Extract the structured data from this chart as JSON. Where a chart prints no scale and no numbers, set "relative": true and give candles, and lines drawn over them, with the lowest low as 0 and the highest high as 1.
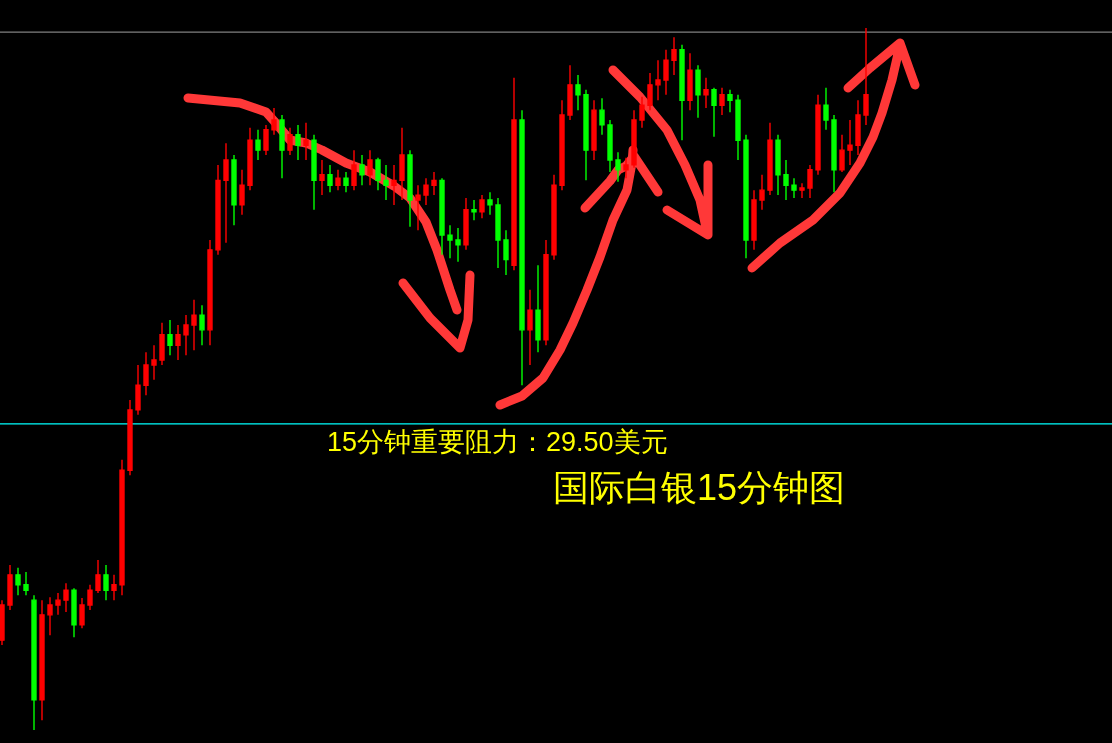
{
  "chart_data": {
    "type": "candlestick",
    "title": "国际白银15分钟图",
    "relative": true,
    "categories": [
      null,
      null,
      null,
      null,
      null,
      null,
      null,
      null,
      null,
      null,
      null,
      null,
      null,
      null,
      null,
      null,
      null,
      null,
      null,
      null,
      null,
      null,
      null,
      null,
      null,
      null,
      null,
      null,
      null,
      null,
      null,
      null,
      null,
      null,
      null,
      null,
      null,
      null,
      null,
      null,
      null,
      null,
      null,
      null,
      null,
      null,
      null,
      null,
      null,
      null,
      null,
      null,
      null,
      null,
      null,
      null,
      null,
      null,
      null,
      null,
      null,
      null,
      null,
      null,
      null,
      null,
      null,
      null,
      null,
      null,
      null,
      null,
      null,
      null,
      null,
      null,
      null,
      null,
      null,
      null,
      null,
      null,
      null,
      null,
      null,
      null,
      null,
      null,
      null,
      null,
      null,
      null,
      null,
      null,
      null,
      null,
      null,
      null,
      null,
      null,
      null,
      null,
      null,
      null,
      null,
      null,
      null,
      null,
      null
    ],
    "ohlc": [
      [
        0.128,
        0.185,
        0.121,
        0.178
      ],
      [
        0.178,
        0.235,
        0.171,
        0.221
      ],
      [
        0.221,
        0.231,
        0.192,
        0.207
      ],
      [
        0.207,
        0.225,
        0.192,
        0.199
      ],
      [
        0.185,
        0.192,
        0.0,
        0.043
      ],
      [
        0.043,
        0.185,
        0.014,
        0.164
      ],
      [
        0.164,
        0.189,
        0.135,
        0.178
      ],
      [
        0.178,
        0.195,
        0.164,
        0.185
      ],
      [
        0.185,
        0.209,
        0.168,
        0.199
      ],
      [
        0.199,
        0.202,
        0.132,
        0.15
      ],
      [
        0.15,
        0.188,
        0.145,
        0.178
      ],
      [
        0.178,
        0.207,
        0.171,
        0.199
      ],
      [
        0.199,
        0.242,
        0.195,
        0.221
      ],
      [
        0.221,
        0.235,
        0.185,
        0.199
      ],
      [
        0.199,
        0.221,
        0.185,
        0.207
      ],
      [
        0.207,
        0.385,
        0.192,
        0.37
      ],
      [
        0.37,
        0.47,
        0.363,
        0.456
      ],
      [
        0.456,
        0.52,
        0.449,
        0.491
      ],
      [
        0.491,
        0.538,
        0.477,
        0.52
      ],
      [
        0.52,
        0.548,
        0.499,
        0.527
      ],
      [
        0.527,
        0.58,
        0.52,
        0.563
      ],
      [
        0.563,
        0.584,
        0.534,
        0.548
      ],
      [
        0.548,
        0.577,
        0.527,
        0.563
      ],
      [
        0.563,
        0.591,
        0.534,
        0.577
      ],
      [
        0.577,
        0.613,
        0.541,
        0.591
      ],
      [
        0.591,
        0.605,
        0.548,
        0.57
      ],
      [
        0.57,
        0.698,
        0.548,
        0.684
      ],
      [
        0.684,
        0.805,
        0.677,
        0.783
      ],
      [
        0.783,
        0.836,
        0.694,
        0.812
      ],
      [
        0.812,
        0.819,
        0.719,
        0.748
      ],
      [
        0.748,
        0.798,
        0.734,
        0.776
      ],
      [
        0.776,
        0.858,
        0.769,
        0.84
      ],
      [
        0.84,
        0.855,
        0.812,
        0.826
      ],
      [
        0.826,
        0.862,
        0.819,
        0.855
      ],
      [
        0.855,
        0.886,
        0.848,
        0.869
      ],
      [
        0.869,
        0.876,
        0.786,
        0.826
      ],
      [
        0.826,
        0.858,
        0.819,
        0.848
      ],
      [
        0.848,
        0.862,
        0.812,
        0.833
      ],
      [
        0.833,
        0.865,
        0.812,
        0.84
      ],
      [
        0.84,
        0.848,
        0.741,
        0.783
      ],
      [
        0.783,
        0.812,
        0.762,
        0.791
      ],
      [
        0.791,
        0.805,
        0.766,
        0.776
      ],
      [
        0.776,
        0.798,
        0.769,
        0.786
      ],
      [
        0.786,
        0.795,
        0.766,
        0.776
      ],
      [
        0.776,
        0.826,
        0.769,
        0.805
      ],
      [
        0.805,
        0.819,
        0.776,
        0.791
      ],
      [
        0.791,
        0.826,
        0.776,
        0.812
      ],
      [
        0.812,
        0.815,
        0.769,
        0.783
      ],
      [
        0.783,
        0.805,
        0.755,
        0.776
      ],
      [
        0.776,
        0.805,
        0.748,
        0.783
      ],
      [
        0.783,
        0.858,
        0.755,
        0.819
      ],
      [
        0.819,
        0.826,
        0.717,
        0.755
      ],
      [
        0.755,
        0.776,
        0.712,
        0.762
      ],
      [
        0.762,
        0.786,
        0.748,
        0.776
      ],
      [
        0.776,
        0.795,
        0.762,
        0.783
      ],
      [
        0.783,
        0.786,
        0.677,
        0.705
      ],
      [
        0.705,
        0.719,
        0.672,
        0.698
      ],
      [
        0.698,
        0.715,
        0.667,
        0.691
      ],
      [
        0.691,
        0.758,
        0.684,
        0.741
      ],
      [
        0.741,
        0.755,
        0.726,
        0.738
      ],
      [
        0.738,
        0.762,
        0.729,
        0.755
      ],
      [
        0.755,
        0.766,
        0.734,
        0.748
      ],
      [
        0.748,
        0.758,
        0.658,
        0.698
      ],
      [
        0.698,
        0.712,
        0.648,
        0.67
      ],
      [
        0.662,
        0.929,
        0.655,
        0.869
      ],
      [
        0.869,
        0.883,
        0.491,
        0.57
      ],
      [
        0.57,
        0.627,
        0.52,
        0.598
      ],
      [
        0.598,
        0.662,
        0.538,
        0.556
      ],
      [
        0.556,
        0.698,
        0.548,
        0.677
      ],
      [
        0.677,
        0.791,
        0.67,
        0.776
      ],
      [
        0.776,
        0.897,
        0.769,
        0.876
      ],
      [
        0.876,
        0.947,
        0.869,
        0.919
      ],
      [
        0.919,
        0.933,
        0.883,
        0.905
      ],
      [
        0.905,
        0.912,
        0.783,
        0.826
      ],
      [
        0.826,
        0.897,
        0.812,
        0.883
      ],
      [
        0.883,
        0.9,
        0.848,
        0.862
      ],
      [
        0.862,
        0.869,
        0.795,
        0.812
      ],
      [
        0.812,
        0.823,
        0.781,
        0.798
      ],
      [
        0.798,
        0.815,
        0.786,
        0.805
      ],
      [
        0.805,
        0.883,
        0.801,
        0.869
      ],
      [
        0.869,
        0.902,
        0.858,
        0.89
      ],
      [
        0.89,
        0.936,
        0.883,
        0.919
      ],
      [
        0.919,
        0.954,
        0.897,
        0.926
      ],
      [
        0.926,
        0.969,
        0.905,
        0.954
      ],
      [
        0.954,
        0.987,
        0.933,
        0.969
      ],
      [
        0.969,
        0.976,
        0.84,
        0.897
      ],
      [
        0.897,
        0.964,
        0.883,
        0.94
      ],
      [
        0.94,
        0.947,
        0.872,
        0.905
      ],
      [
        0.905,
        0.929,
        0.886,
        0.912
      ],
      [
        0.912,
        0.915,
        0.845,
        0.89
      ],
      [
        0.89,
        0.915,
        0.876,
        0.905
      ],
      [
        0.905,
        0.912,
        0.88,
        0.897
      ],
      [
        0.897,
        0.905,
        0.812,
        0.84
      ],
      [
        0.84,
        0.848,
        0.672,
        0.698
      ],
      [
        0.698,
        0.769,
        0.684,
        0.755
      ],
      [
        0.755,
        0.791,
        0.741,
        0.769
      ],
      [
        0.769,
        0.865,
        0.762,
        0.84
      ],
      [
        0.84,
        0.848,
        0.762,
        0.791
      ],
      [
        0.791,
        0.812,
        0.755,
        0.776
      ],
      [
        0.776,
        0.786,
        0.758,
        0.769
      ],
      [
        0.769,
        0.779,
        0.758,
        0.772
      ],
      [
        0.772,
        0.805,
        0.758,
        0.798
      ],
      [
        0.798,
        0.905,
        0.791,
        0.89
      ],
      [
        0.89,
        0.915,
        0.855,
        0.869
      ],
      [
        0.869,
        0.876,
        0.766,
        0.798
      ],
      [
        0.798,
        0.848,
        0.795,
        0.826
      ],
      [
        0.826,
        0.869,
        0.805,
        0.833
      ],
      [
        0.833,
        0.897,
        0.819,
        0.876
      ],
      [
        0.876,
        1.0,
        0.862,
        0.905
      ]
    ],
    "colors": [
      "#ff0000",
      "#ff0000",
      "#00ff00",
      "#00ff00",
      "#00ff00",
      "#ff0000",
      "#ff0000",
      "#ff0000",
      "#ff0000",
      "#00ff00",
      "#ff0000",
      "#ff0000",
      "#ff0000",
      "#00ff00",
      "#ff0000",
      "#ff0000",
      "#ff0000",
      "#ff0000",
      "#ff0000",
      "#ff0000",
      "#ff0000",
      "#00ff00",
      "#ff0000",
      "#ff0000",
      "#ff0000",
      "#00ff00",
      "#ff0000",
      "#ff0000",
      "#ff0000",
      "#00ff00",
      "#ff0000",
      "#ff0000",
      "#00ff00",
      "#ff0000",
      "#ff0000",
      "#00ff00",
      "#ff0000",
      "#00ff00",
      "#ff0000",
      "#00ff00",
      "#ff0000",
      "#00ff00",
      "#ff0000",
      "#00ff00",
      "#ff0000",
      "#00ff00",
      "#ff0000",
      "#00ff00",
      "#00ff00",
      "#ff0000",
      "#ff0000",
      "#00ff00",
      "#ff0000",
      "#ff0000",
      "#ff0000",
      "#00ff00",
      "#00ff00",
      "#00ff00",
      "#ff0000",
      "#00ff00",
      "#ff0000",
      "#00ff00",
      "#00ff00",
      "#00ff00",
      "#ff0000",
      "#00ff00",
      "#ff0000",
      "#00ff00",
      "#ff0000",
      "#ff0000",
      "#ff0000",
      "#ff0000",
      "#00ff00",
      "#00ff00",
      "#ff0000",
      "#00ff00",
      "#00ff00",
      "#00ff00",
      "#ff0000",
      "#ff0000",
      "#ff0000",
      "#ff0000",
      "#ff0000",
      "#ff0000",
      "#ff0000",
      "#00ff00",
      "#ff0000",
      "#00ff00",
      "#ff0000",
      "#00ff00",
      "#ff0000",
      "#00ff00",
      "#00ff00",
      "#00ff00",
      "#ff0000",
      "#ff0000",
      "#ff0000",
      "#00ff00",
      "#00ff00",
      "#00ff00",
      "#ff0000",
      "#ff0000",
      "#ff0000",
      "#00ff00",
      "#00ff00",
      "#ff0000",
      "#ff0000",
      "#ff0000",
      "#ff0000"
    ],
    "ref_lines": [
      {
        "axis": "y",
        "value": 0.436,
        "label": "15分钟重要阻力：29.50美元",
        "color": "#00ffff"
      },
      {
        "axis": "y",
        "value": 0.994,
        "color": "#808080"
      }
    ]
  }
}
